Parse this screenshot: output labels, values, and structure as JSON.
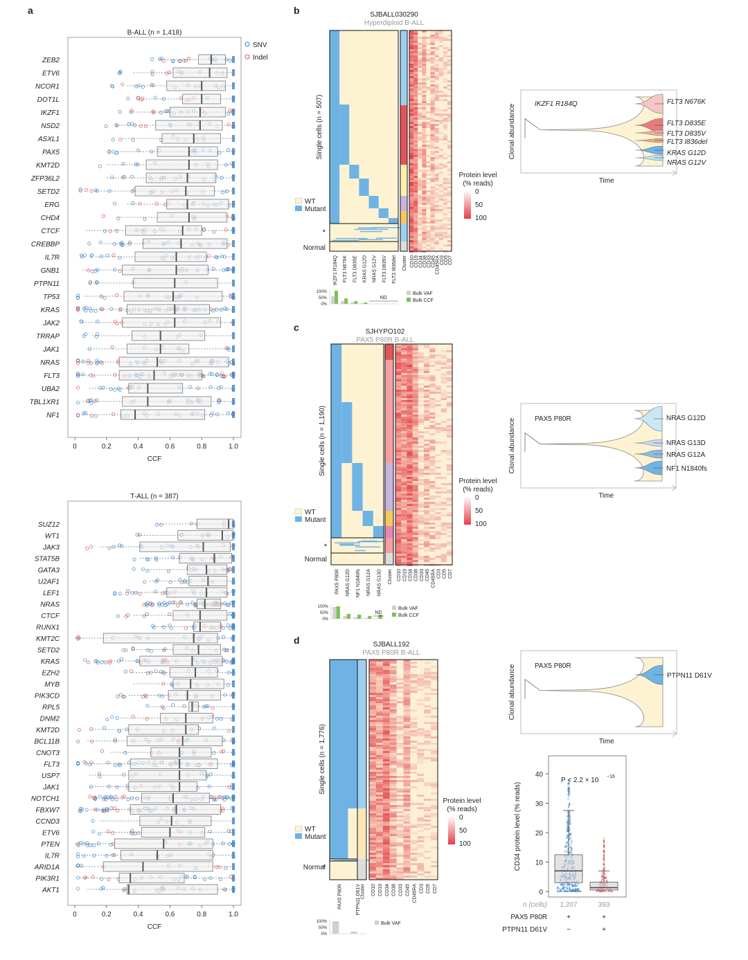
{
  "colors": {
    "snv": "#3b82c4",
    "indel": "#d9534f",
    "wt": "#fdf3d3",
    "mutant": "#6fb3e4",
    "box": "#eeeeee",
    "heat_hi": "#e0303a",
    "heat_lo": "#fdf0d8",
    "bulk_vaf": "#cfcfcf",
    "bulk_ccf": "#7cc15a"
  },
  "panel_a": {
    "label": "a",
    "top": {
      "title": "B-ALL (n = 1,418)",
      "legend": [
        "SNV",
        "Indel"
      ],
      "xlabel": "CCF",
      "ticks": [
        "0",
        "0.2",
        "0.4",
        "0.6",
        "0.8",
        "1.0"
      ],
      "genes": [
        "ZEB2",
        "ETV6",
        "NCOR1",
        "DOT1L",
        "IKZF1",
        "NSD2",
        "ASXL1",
        "PAX5",
        "KMT2D",
        "ZFP36L2",
        "SETD2",
        "ERG",
        "CHD4",
        "CTCF",
        "CREBBP",
        "IL7R",
        "GNB1",
        "PTPN11",
        "TP53",
        "KRAS",
        "JAK2",
        "TRRAP",
        "JAK1",
        "NRAS",
        "FLT3",
        "UBA2",
        "TBL1XR1",
        "NF1"
      ]
    },
    "bottom": {
      "title": "T-ALL (n = 387)",
      "xlabel": "CCF",
      "ticks": [
        "0",
        "0.2",
        "0.4",
        "0.6",
        "0.8",
        "1.0"
      ],
      "genes": [
        "SUZ12",
        "WT1",
        "JAK3",
        "STAT5B",
        "GATA3",
        "U2AF1",
        "LEF1",
        "NRAS",
        "CTCF",
        "RUNX1",
        "KMT2C",
        "SETD2",
        "KRAS",
        "EZH2",
        "MYB",
        "PIK3CD",
        "RPL5",
        "DNM2",
        "KMT2D",
        "BCL11B",
        "CNOT3",
        "FLT3",
        "USP7",
        "JAK1",
        "NOTCH1",
        "FBXW7",
        "CCND3",
        "ETV6",
        "PTEN",
        "IL7R",
        "ARID1A",
        "PIK3R1",
        "AKT1"
      ]
    }
  },
  "panel_b": {
    "label": "b",
    "title": "SJBALL030290",
    "subtitle": "Hyperdiploid B-ALL",
    "ylabel": "Single cells (n = 507)",
    "legend": [
      "WT",
      "Mutant"
    ],
    "star": "*",
    "normal": "Normal",
    "mutations": [
      "IKZF1 R184Q",
      "FLT3 N676K",
      "FLT3 D835E",
      "KRAS G12D",
      "NRAS G12V",
      "FLT3 D835V",
      "FLT3 I836del"
    ],
    "cluster_label": "Cluster",
    "proteins": [
      "CD10",
      "CD19",
      "CD34",
      "CD38",
      "CD33",
      "CD45",
      "CD45RA",
      "CD3",
      "CD5",
      "CD7"
    ],
    "protein_legend": {
      "title": "Protein level",
      "subtitle": "(% reads)",
      "ticks": [
        "0",
        "50",
        "100"
      ]
    },
    "bulk": {
      "ticks": [
        "100%",
        "50%",
        "0%"
      ],
      "nd": "ND",
      "legend": [
        "Bulk VAF",
        "Bulk CCF"
      ]
    },
    "fishplot": {
      "ylabel": "Clonal abundance",
      "xlabel": "Time",
      "founder": "IKZF1 R184Q",
      "clones": [
        "FLT3 N676K",
        "FLT3 D835E",
        "FLT3 D835V",
        "FLT3 I836del",
        "KRAS G12D",
        "NRAS G12V"
      ]
    }
  },
  "panel_c": {
    "label": "c",
    "title": "SJHYPO102",
    "subtitle": "PAX5 P80R B-ALL",
    "ylabel": "Single cells (n = 1,190)",
    "legend": [
      "WT",
      "Mutant"
    ],
    "star": "*",
    "normal": "Normal",
    "mutations": [
      "PAX5 P80R",
      "NRAS G12D",
      "NF1 N1840fs",
      "NRAS G12A",
      "NRAS G13D"
    ],
    "cluster_label": "Cluster",
    "proteins": [
      "CD10",
      "CD19",
      "CD34",
      "CD38",
      "CD33",
      "CD45",
      "CD45RA",
      "CD3",
      "CD5",
      "CD7"
    ],
    "protein_legend": {
      "title": "Protein level",
      "subtitle": "(% reads)",
      "ticks": [
        "0",
        "50",
        "100"
      ]
    },
    "bulk": {
      "ticks": [
        "100%",
        "50%",
        "0%"
      ],
      "nd": "ND",
      "legend": [
        "Bulk VAF",
        "Bulk CCF"
      ]
    },
    "fishplot": {
      "ylabel": "Clonal abundance",
      "xlabel": "Time",
      "founder": "PAX5 P80R",
      "clones": [
        "NRAS G12D",
        "NRAS G13D",
        "NRAS G12A",
        "NF1 N1840fs"
      ]
    }
  },
  "panel_d": {
    "label": "d",
    "title": "SJBALL192",
    "subtitle": "PAX5 P80R B-ALL",
    "ylabel": "Single cells (n = 1,776)",
    "legend": [
      "WT",
      "Mutant"
    ],
    "star": "*",
    "normal": "Normal",
    "mutations": [
      "PAX5 P80R",
      "PTPN11 D61V"
    ],
    "cluster_label": "Cluster",
    "proteins": [
      "CD10",
      "CD19",
      "CD34",
      "CD38",
      "CD33",
      "CD45",
      "CD45RA",
      "CD3",
      "CD5",
      "CD7"
    ],
    "protein_legend": {
      "title": "Protein level",
      "subtitle": "(% reads)",
      "ticks": [
        "0",
        "50",
        "100"
      ]
    },
    "bulk": {
      "ticks": [
        "100%",
        "50%",
        "0%"
      ],
      "legend": [
        "Bulk VAF"
      ]
    },
    "fishplot": {
      "ylabel": "Clonal abundance",
      "xlabel": "Time",
      "founder": "PAX5 P80R",
      "clones": [
        "PTPN11 D61V"
      ]
    },
    "boxplot": {
      "ylabel": "CD34 protein level (% reads)",
      "pvalue": "P < 2.2 × 10",
      "pvalue_exp": "−16",
      "yticks": [
        "0",
        "10",
        "20",
        "30",
        "40"
      ],
      "ncells_label": "n (cells)",
      "ncells": [
        "1,207",
        "393"
      ],
      "rows": [
        {
          "label": "PAX5 P80R",
          "values": [
            "+",
            "+"
          ]
        },
        {
          "label": "PTPN11 D61V",
          "values": [
            "−",
            "+"
          ]
        }
      ]
    }
  },
  "chart_data": [
    {
      "type": "box",
      "title": "B-ALL (n = 1,418)",
      "xlabel": "CCF",
      "xlim": [
        0,
        1
      ],
      "categories": [
        "ZEB2",
        "ETV6",
        "NCOR1",
        "DOT1L",
        "IKZF1",
        "NSD2",
        "ASXL1",
        "PAX5",
        "KMT2D",
        "ZFP36L2",
        "SETD2",
        "ERG",
        "CHD4",
        "CTCF",
        "CREBBP",
        "IL7R",
        "GNB1",
        "PTPN11",
        "TP53",
        "KRAS",
        "JAK2",
        "TRRAP",
        "JAK1",
        "NRAS",
        "FLT3",
        "UBA2",
        "TBL1XR1",
        "NF1"
      ],
      "q1": [
        0.78,
        0.62,
        0.58,
        0.68,
        0.6,
        0.51,
        0.55,
        0.52,
        0.45,
        0.45,
        0.38,
        0.58,
        0.52,
        0.32,
        0.43,
        0.38,
        0.3,
        0.37,
        0.31,
        0.33,
        0.3,
        0.36,
        0.33,
        0.28,
        0.28,
        0.34,
        0.3,
        0.29
      ],
      "median": [
        0.86,
        0.85,
        0.8,
        0.8,
        0.79,
        0.79,
        0.75,
        0.72,
        0.72,
        0.71,
        0.7,
        0.71,
        0.72,
        0.68,
        0.67,
        0.64,
        0.64,
        0.63,
        0.62,
        0.63,
        0.63,
        0.54,
        0.54,
        0.52,
        0.5,
        0.46,
        0.46,
        0.38
      ],
      "q3": [
        0.95,
        0.96,
        0.95,
        0.92,
        0.95,
        0.93,
        0.92,
        0.9,
        0.9,
        0.89,
        0.88,
        0.97,
        0.96,
        0.8,
        0.96,
        0.83,
        0.84,
        0.9,
        0.93,
        0.85,
        0.92,
        0.82,
        0.72,
        0.97,
        0.8,
        0.68,
        0.86,
        0.82
      ]
    },
    {
      "type": "box",
      "title": "T-ALL (n = 387)",
      "xlabel": "CCF",
      "xlim": [
        0,
        1
      ],
      "categories": [
        "SUZ12",
        "WT1",
        "JAK3",
        "STAT5B",
        "GATA3",
        "U2AF1",
        "LEF1",
        "NRAS",
        "CTCF",
        "RUNX1",
        "KMT2C",
        "SETD2",
        "KRAS",
        "EZH2",
        "MYB",
        "PIK3CD",
        "RPL5",
        "DNM2",
        "KMT2D",
        "BCL11B",
        "CNOT3",
        "FLT3",
        "USP7",
        "JAK1",
        "NOTCH1",
        "FBXW7",
        "CCND3",
        "ETV6",
        "PTEN",
        "IL7R",
        "ARID1A",
        "PIK3R1",
        "AKT1"
      ],
      "q1": [
        0.77,
        0.65,
        0.41,
        0.66,
        0.71,
        0.72,
        0.58,
        0.77,
        0.62,
        0.75,
        0.18,
        0.62,
        0.41,
        0.6,
        0.62,
        0.59,
        0.72,
        0.54,
        0.34,
        0.33,
        0.48,
        0.35,
        0.34,
        0.34,
        0.42,
        0.35,
        0.41,
        0.42,
        0.25,
        0.29,
        0.18,
        0.28,
        0.33
      ],
      "median": [
        0.97,
        0.93,
        0.81,
        0.88,
        0.83,
        0.84,
        0.83,
        0.82,
        0.79,
        0.79,
        0.75,
        0.78,
        0.74,
        0.76,
        0.73,
        0.71,
        0.74,
        0.7,
        0.7,
        0.68,
        0.66,
        0.66,
        0.66,
        0.66,
        0.62,
        0.64,
        0.61,
        0.6,
        0.56,
        0.52,
        0.43,
        0.35,
        0.34
      ],
      "q3": [
        1.0,
        1.0,
        0.98,
        0.99,
        0.96,
        0.96,
        0.96,
        0.92,
        0.96,
        0.92,
        0.9,
        0.92,
        0.93,
        0.9,
        0.94,
        0.92,
        0.78,
        0.87,
        0.78,
        0.93,
        0.86,
        0.9,
        0.83,
        0.77,
        0.85,
        0.92,
        0.86,
        0.82,
        0.87,
        0.87,
        0.87,
        0.69,
        0.9
      ]
    },
    {
      "type": "box",
      "title": "CD34 protein level",
      "ylabel": "CD34 protein level (% reads)",
      "ylim": [
        0,
        45
      ],
      "categories": [
        "PAX5 P80R + / PTPN11 D61V −",
        "PAX5 P80R + / PTPN11 D61V +"
      ],
      "n": [
        1207,
        393
      ],
      "q1": [
        3.0,
        0.5
      ],
      "median": [
        7.0,
        1.3
      ],
      "q3": [
        12.5,
        3.2
      ],
      "whisker_high": [
        27.5,
        7.0
      ]
    }
  ]
}
